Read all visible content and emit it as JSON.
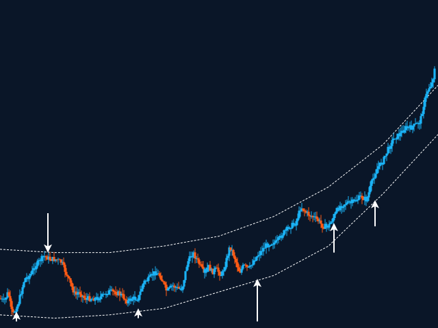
{
  "colors": {
    "background": "#0a1628",
    "bull": "#1ab2f5",
    "bear": "#ff5a14",
    "channel": "#ffffff",
    "arrow": "#ffffff"
  },
  "chart_data": {
    "type": "candlestick",
    "grid": false,
    "legend": "none",
    "axes_visible": false,
    "x_range": [
      0,
      320
    ],
    "y_range": [
      0,
      100
    ],
    "price_path": [
      [
        0,
        91
      ],
      [
        3,
        92
      ],
      [
        6,
        89
      ],
      [
        9,
        96
      ],
      [
        13,
        93
      ],
      [
        18,
        85
      ],
      [
        22,
        84
      ],
      [
        26,
        81
      ],
      [
        30,
        79
      ],
      [
        33,
        78
      ],
      [
        36,
        79
      ],
      [
        40,
        79
      ],
      [
        45,
        80
      ],
      [
        50,
        85
      ],
      [
        55,
        90
      ],
      [
        58,
        89
      ],
      [
        62,
        91
      ],
      [
        67,
        91
      ],
      [
        71,
        91
      ],
      [
        76,
        90
      ],
      [
        79,
        89
      ],
      [
        84,
        89
      ],
      [
        89,
        90
      ],
      [
        93,
        92
      ],
      [
        97,
        91
      ],
      [
        101,
        91
      ],
      [
        105,
        86
      ],
      [
        109,
        85
      ],
      [
        113,
        83
      ],
      [
        117,
        84
      ],
      [
        122,
        89
      ],
      [
        126,
        87
      ],
      [
        130,
        88
      ],
      [
        133,
        88
      ],
      [
        137,
        80
      ],
      [
        141,
        77
      ],
      [
        145,
        80
      ],
      [
        150,
        84
      ],
      [
        152,
        81
      ],
      [
        155,
        83
      ],
      [
        158,
        82
      ],
      [
        162,
        84
      ],
      [
        165,
        80
      ],
      [
        168,
        75
      ],
      [
        171,
        78
      ],
      [
        175,
        83
      ],
      [
        178,
        81
      ],
      [
        182,
        82
      ],
      [
        186,
        79
      ],
      [
        190,
        77
      ],
      [
        194,
        75
      ],
      [
        198,
        74
      ],
      [
        202,
        74
      ],
      [
        207,
        71
      ],
      [
        212,
        69
      ],
      [
        216,
        68
      ],
      [
        220,
        63
      ],
      [
        224,
        65
      ],
      [
        228,
        66
      ],
      [
        232,
        67
      ],
      [
        236,
        69
      ],
      [
        240,
        69
      ],
      [
        244,
        66
      ],
      [
        248,
        63
      ],
      [
        252,
        62
      ],
      [
        256,
        62
      ],
      [
        260,
        61
      ],
      [
        264,
        60
      ],
      [
        268,
        61
      ],
      [
        272,
        55
      ],
      [
        276,
        51
      ],
      [
        280,
        49
      ],
      [
        284,
        45
      ],
      [
        288,
        42
      ],
      [
        292,
        41
      ],
      [
        296,
        39
      ],
      [
        300,
        39
      ],
      [
        304,
        38
      ],
      [
        307,
        37
      ],
      [
        310,
        31
      ],
      [
        313,
        27
      ],
      [
        316,
        25
      ],
      [
        318,
        19
      ]
    ],
    "channel_upper": [
      [
        0,
        76
      ],
      [
        40,
        77
      ],
      [
        80,
        77
      ],
      [
        120,
        75
      ],
      [
        160,
        72
      ],
      [
        200,
        66
      ],
      [
        240,
        57
      ],
      [
        280,
        44
      ],
      [
        320,
        26
      ]
    ],
    "channel_lower": [
      [
        0,
        96
      ],
      [
        40,
        97
      ],
      [
        80,
        96
      ],
      [
        120,
        94
      ],
      [
        160,
        89
      ],
      [
        200,
        84
      ],
      [
        240,
        75
      ],
      [
        280,
        59
      ],
      [
        320,
        41
      ]
    ],
    "signals": [
      {
        "direction": "down",
        "x": 35,
        "y": 77,
        "length": 12
      },
      {
        "direction": "up",
        "x": 12,
        "y": 95,
        "length": 3
      },
      {
        "direction": "up",
        "x": 101,
        "y": 94,
        "length": 3
      },
      {
        "direction": "up",
        "x": 188,
        "y": 85,
        "length": 13
      },
      {
        "direction": "up",
        "x": 244,
        "y": 68,
        "length": 9
      },
      {
        "direction": "up",
        "x": 274,
        "y": 61,
        "length": 8
      }
    ]
  }
}
